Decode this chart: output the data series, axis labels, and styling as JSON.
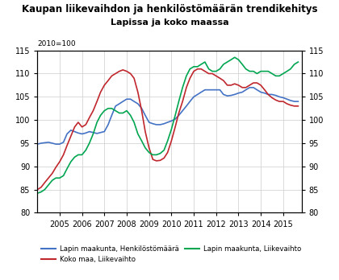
{
  "title1": "Kaupan liikevaihdon ja henkilöstömäärän trendikehitys",
  "title2": "Lapissa ja koko maassa",
  "index_label": "2010=100",
  "ylim": [
    80,
    115
  ],
  "yticks": [
    80,
    85,
    90,
    95,
    100,
    105,
    110,
    115
  ],
  "legend": [
    {
      "label": "Lapin maakunta, Henkilöstömäärä",
      "color": "#4472C4"
    },
    {
      "label": "Koko maa, Liikevaihto",
      "color": "#C0272D"
    },
    {
      "label": "Lapin maakunta, Liikevaihto",
      "color": "#00A550"
    }
  ],
  "blue": {
    "x": [
      2004.0,
      2004.17,
      2004.33,
      2004.5,
      2004.67,
      2004.83,
      2005.0,
      2005.17,
      2005.33,
      2005.5,
      2005.67,
      2005.83,
      2006.0,
      2006.17,
      2006.33,
      2006.5,
      2006.67,
      2006.83,
      2007.0,
      2007.17,
      2007.33,
      2007.5,
      2007.67,
      2007.83,
      2008.0,
      2008.17,
      2008.33,
      2008.5,
      2008.67,
      2008.83,
      2009.0,
      2009.17,
      2009.33,
      2009.5,
      2009.67,
      2009.83,
      2010.0,
      2010.17,
      2010.33,
      2010.5,
      2010.67,
      2010.83,
      2011.0,
      2011.17,
      2011.33,
      2011.5,
      2011.67,
      2011.83,
      2012.0,
      2012.17,
      2012.33,
      2012.5,
      2012.67,
      2012.83,
      2013.0,
      2013.17,
      2013.33,
      2013.5,
      2013.67,
      2013.83,
      2014.0,
      2014.17,
      2014.33,
      2014.5,
      2014.67,
      2014.83,
      2015.0,
      2015.17,
      2015.33,
      2015.5,
      2015.67
    ],
    "y": [
      94.8,
      95.0,
      95.1,
      95.2,
      95.0,
      94.8,
      94.8,
      95.2,
      97.0,
      97.8,
      97.5,
      97.2,
      97.0,
      97.2,
      97.5,
      97.3,
      97.1,
      97.3,
      97.5,
      99.0,
      101.0,
      103.0,
      103.5,
      104.0,
      104.5,
      104.5,
      104.0,
      103.5,
      102.5,
      101.0,
      99.5,
      99.2,
      99.0,
      99.0,
      99.2,
      99.5,
      99.8,
      100.2,
      101.0,
      102.0,
      103.0,
      104.0,
      105.0,
      105.5,
      106.0,
      106.5,
      106.5,
      106.5,
      106.5,
      106.5,
      105.5,
      105.2,
      105.3,
      105.5,
      105.8,
      106.0,
      106.5,
      107.0,
      107.0,
      106.5,
      106.0,
      105.8,
      105.5,
      105.5,
      105.3,
      105.0,
      104.8,
      104.5,
      104.2,
      104.0,
      104.0
    ]
  },
  "red": {
    "x": [
      2004.0,
      2004.17,
      2004.33,
      2004.5,
      2004.67,
      2004.83,
      2005.0,
      2005.17,
      2005.33,
      2005.5,
      2005.67,
      2005.83,
      2006.0,
      2006.17,
      2006.33,
      2006.5,
      2006.67,
      2006.83,
      2007.0,
      2007.17,
      2007.33,
      2007.5,
      2007.67,
      2007.83,
      2008.0,
      2008.17,
      2008.33,
      2008.5,
      2008.67,
      2008.83,
      2009.0,
      2009.17,
      2009.33,
      2009.5,
      2009.67,
      2009.83,
      2010.0,
      2010.17,
      2010.33,
      2010.5,
      2010.67,
      2010.83,
      2011.0,
      2011.17,
      2011.33,
      2011.5,
      2011.67,
      2011.83,
      2012.0,
      2012.17,
      2012.33,
      2012.5,
      2012.67,
      2012.83,
      2013.0,
      2013.17,
      2013.33,
      2013.5,
      2013.67,
      2013.83,
      2014.0,
      2014.17,
      2014.33,
      2014.5,
      2014.67,
      2014.83,
      2015.0,
      2015.17,
      2015.33,
      2015.5,
      2015.67
    ],
    "y": [
      85.0,
      85.5,
      86.5,
      87.5,
      88.5,
      89.8,
      91.0,
      92.5,
      94.5,
      96.5,
      98.5,
      99.5,
      98.5,
      99.0,
      100.5,
      102.0,
      104.0,
      106.0,
      107.5,
      108.5,
      109.5,
      110.0,
      110.5,
      110.8,
      110.5,
      110.0,
      109.0,
      106.0,
      102.0,
      97.5,
      94.0,
      91.5,
      91.2,
      91.3,
      91.8,
      93.0,
      95.5,
      98.5,
      101.5,
      104.0,
      107.0,
      109.0,
      110.5,
      111.0,
      111.0,
      110.5,
      110.0,
      110.0,
      109.5,
      109.0,
      108.5,
      107.5,
      107.5,
      107.8,
      107.5,
      107.0,
      107.0,
      107.5,
      108.0,
      108.0,
      107.5,
      106.5,
      105.5,
      104.8,
      104.3,
      104.0,
      104.0,
      103.5,
      103.2,
      103.0,
      103.0
    ]
  },
  "green": {
    "x": [
      2004.0,
      2004.17,
      2004.33,
      2004.5,
      2004.67,
      2004.83,
      2005.0,
      2005.17,
      2005.33,
      2005.5,
      2005.67,
      2005.83,
      2006.0,
      2006.17,
      2006.33,
      2006.5,
      2006.67,
      2006.83,
      2007.0,
      2007.17,
      2007.33,
      2007.5,
      2007.67,
      2007.83,
      2008.0,
      2008.17,
      2008.33,
      2008.5,
      2008.67,
      2008.83,
      2009.0,
      2009.17,
      2009.33,
      2009.5,
      2009.67,
      2009.83,
      2010.0,
      2010.17,
      2010.33,
      2010.5,
      2010.67,
      2010.83,
      2011.0,
      2011.17,
      2011.33,
      2011.5,
      2011.67,
      2011.83,
      2012.0,
      2012.17,
      2012.33,
      2012.5,
      2012.67,
      2012.83,
      2013.0,
      2013.17,
      2013.33,
      2013.5,
      2013.67,
      2013.83,
      2014.0,
      2014.17,
      2014.33,
      2014.5,
      2014.67,
      2014.83,
      2015.0,
      2015.17,
      2015.33,
      2015.5,
      2015.67
    ],
    "y": [
      84.2,
      84.5,
      85.0,
      86.0,
      87.0,
      87.5,
      87.5,
      88.0,
      89.5,
      91.0,
      92.0,
      92.5,
      92.5,
      93.5,
      95.0,
      97.0,
      99.5,
      101.0,
      102.0,
      102.5,
      102.5,
      102.0,
      101.5,
      101.5,
      102.0,
      101.0,
      99.5,
      97.0,
      95.5,
      94.0,
      93.0,
      92.5,
      92.5,
      92.8,
      93.5,
      95.5,
      98.0,
      101.0,
      104.0,
      107.0,
      109.5,
      111.0,
      111.5,
      111.5,
      112.0,
      112.5,
      111.0,
      110.5,
      110.5,
      111.0,
      112.0,
      112.5,
      113.0,
      113.5,
      113.0,
      112.0,
      111.0,
      110.5,
      110.5,
      110.0,
      110.5,
      110.5,
      110.5,
      110.0,
      109.5,
      109.5,
      110.0,
      110.5,
      111.0,
      112.0,
      112.5
    ]
  }
}
